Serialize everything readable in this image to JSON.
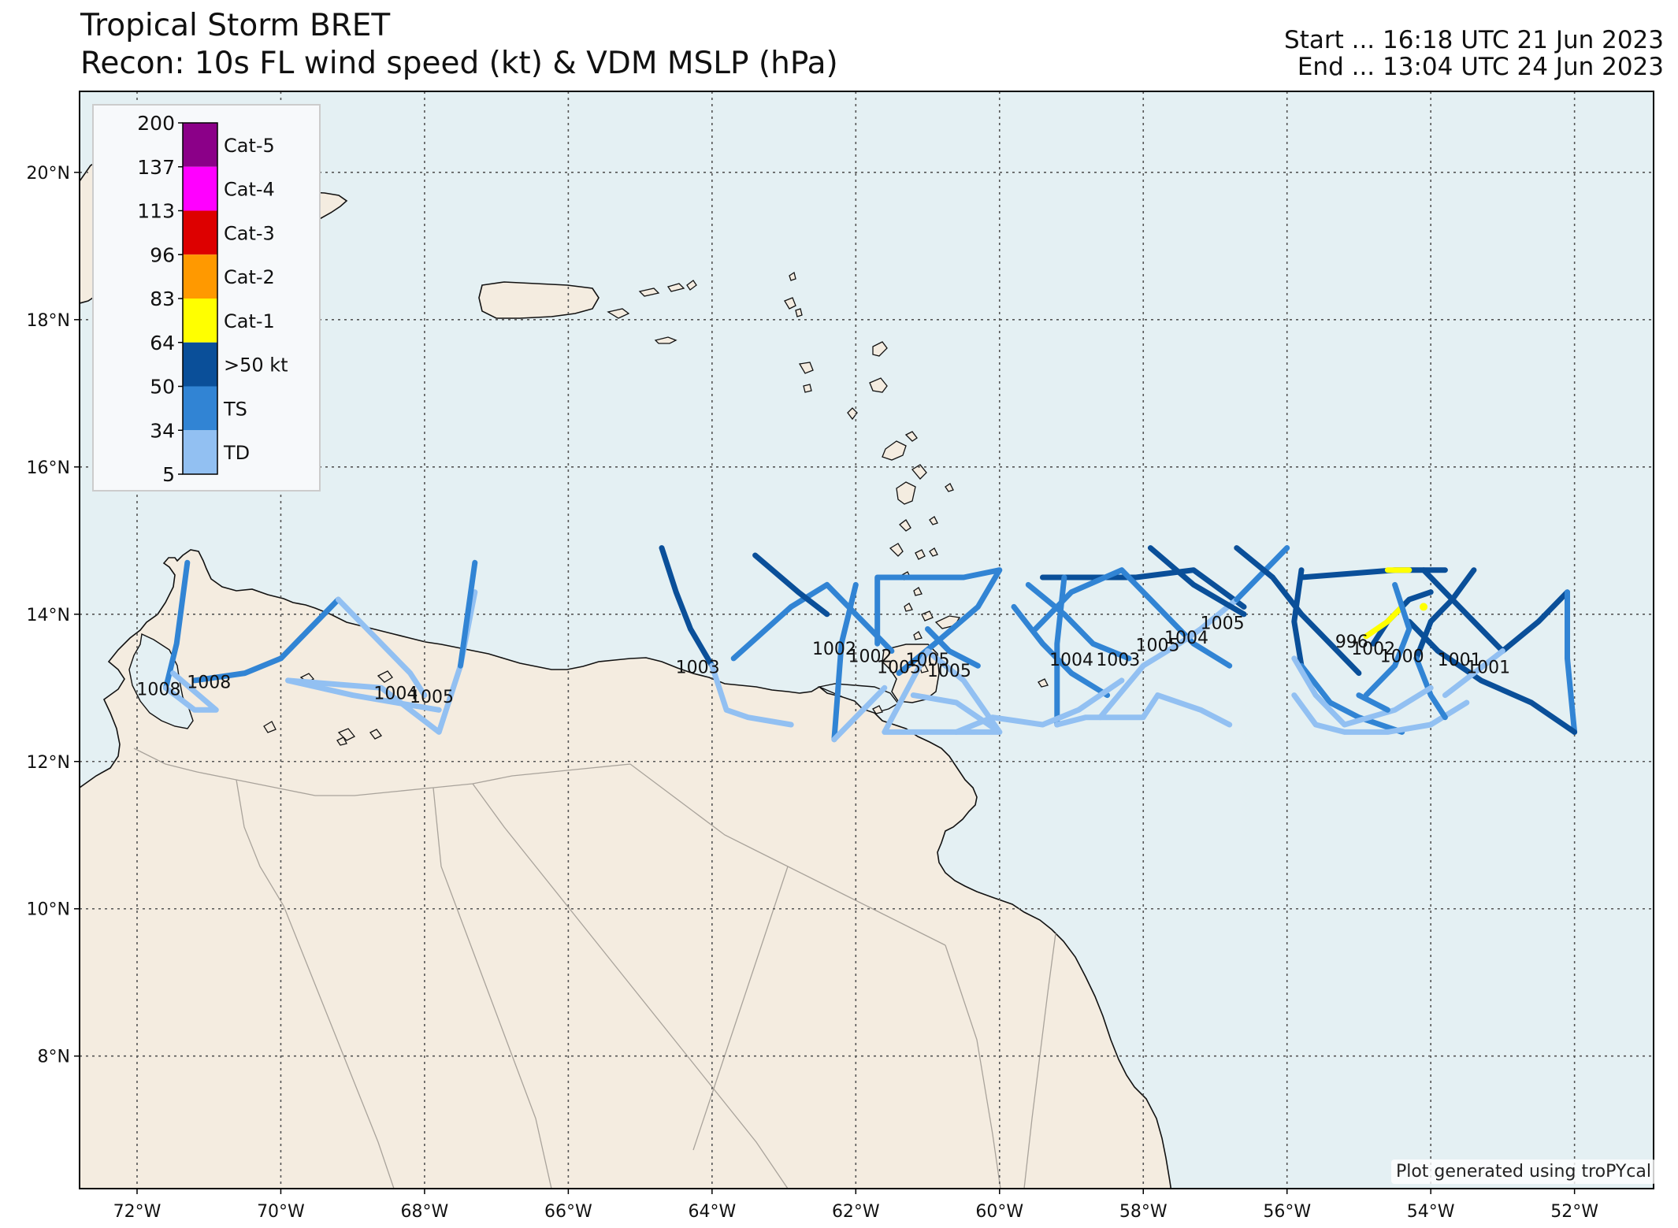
{
  "header": {
    "title": "Tropical Storm BRET",
    "subtitle": "Recon: 10s FL wind speed (kt) & VDM MSLP (hPa)",
    "start": "Start ... 16:18 UTC 21 Jun 2023",
    "end": "End ... 13:04 UTC 24 Jun 2023"
  },
  "credit": "Plot generated using troPYcal",
  "colors": {
    "ocean": "#e4f0f3",
    "land": "#f4ece0",
    "coast": "#111111",
    "border": "#a9a39b",
    "gridline": "#555555"
  },
  "chart_data": {
    "type": "map",
    "lon_range": [
      -72.8,
      -50.9
    ],
    "lat_range": [
      6.2,
      21.1
    ],
    "grid": true,
    "lon_ticks": [
      {
        "value": -72,
        "label": "72°W"
      },
      {
        "value": -70,
        "label": "70°W"
      },
      {
        "value": -68,
        "label": "68°W"
      },
      {
        "value": -66,
        "label": "66°W"
      },
      {
        "value": -64,
        "label": "64°W"
      },
      {
        "value": -62,
        "label": "62°W"
      },
      {
        "value": -60,
        "label": "60°W"
      },
      {
        "value": -58,
        "label": "58°W"
      },
      {
        "value": -56,
        "label": "56°W"
      },
      {
        "value": -54,
        "label": "54°W"
      },
      {
        "value": -52,
        "label": "52°W"
      }
    ],
    "lat_ticks": [
      {
        "value": 20,
        "label": "20°N"
      },
      {
        "value": 18,
        "label": "18°N"
      },
      {
        "value": 16,
        "label": "16°N"
      },
      {
        "value": 14,
        "label": "14°N"
      },
      {
        "value": 12,
        "label": "12°N"
      },
      {
        "value": 10,
        "label": "10°N"
      },
      {
        "value": 8,
        "label": "8°N"
      }
    ],
    "legend": {
      "placement": "top-left",
      "bins": [
        {
          "low": 137,
          "high": 200,
          "label": "Cat-5",
          "color": "#8b0088"
        },
        {
          "low": 113,
          "high": 137,
          "label": "Cat-4",
          "color": "#ff00ff"
        },
        {
          "low": 96,
          "high": 113,
          "label": "Cat-3",
          "color": "#dd0000"
        },
        {
          "low": 83,
          "high": 96,
          "label": "Cat-2",
          "color": "#ff9900"
        },
        {
          "low": 64,
          "high": 83,
          "label": "Cat-1",
          "color": "#ffff00"
        },
        {
          "low": 50,
          "high": 64,
          "label": ">50 kt",
          "color": "#0a4f99"
        },
        {
          "low": 34,
          "high": 50,
          "label": "TS",
          "color": "#3184d4"
        },
        {
          "low": 5,
          "high": 34,
          "label": "TD",
          "color": "#92c0f2"
        }
      ],
      "tick_labels": [
        "200",
        "137",
        "113",
        "96",
        "83",
        "64",
        "50",
        "34",
        "5"
      ]
    },
    "flight_tracks": [
      {
        "cat": "TS",
        "points": [
          [
            -71.3,
            14.7
          ],
          [
            -71.45,
            13.6
          ],
          [
            -71.6,
            13.0
          ]
        ]
      },
      {
        "cat": "TD",
        "points": [
          [
            -71.6,
            13.0
          ],
          [
            -71.2,
            12.7
          ],
          [
            -70.9,
            12.7
          ],
          [
            -71.5,
            13.2
          ]
        ]
      },
      {
        "cat": "TS",
        "points": [
          [
            -71.2,
            13.1
          ],
          [
            -70.5,
            13.2
          ],
          [
            -70.0,
            13.4
          ],
          [
            -69.6,
            13.8
          ],
          [
            -69.2,
            14.2
          ]
        ]
      },
      {
        "cat": "TD",
        "points": [
          [
            -69.2,
            14.2
          ],
          [
            -68.6,
            13.6
          ],
          [
            -68.2,
            13.2
          ],
          [
            -68.0,
            12.9
          ]
        ]
      },
      {
        "cat": "TD",
        "points": [
          [
            -69.9,
            13.1
          ],
          [
            -68.6,
            13.0
          ],
          [
            -67.8,
            12.4
          ],
          [
            -67.5,
            13.3
          ],
          [
            -67.3,
            14.3
          ]
        ]
      },
      {
        "cat": "TS",
        "points": [
          [
            -67.5,
            13.3
          ],
          [
            -67.3,
            14.7
          ]
        ]
      },
      {
        "cat": "TD",
        "points": [
          [
            -69.9,
            13.1
          ],
          [
            -69.0,
            12.9
          ],
          [
            -67.8,
            12.7
          ]
        ]
      },
      {
        "cat": ">50 kt",
        "points": [
          [
            -64.7,
            14.9
          ],
          [
            -64.5,
            14.3
          ],
          [
            -64.3,
            13.8
          ],
          [
            -64.0,
            13.3
          ]
        ]
      },
      {
        "cat": "TD",
        "points": [
          [
            -64.0,
            13.3
          ],
          [
            -63.8,
            12.7
          ],
          [
            -63.5,
            12.6
          ],
          [
            -62.9,
            12.5
          ]
        ]
      },
      {
        "cat": "TS",
        "points": [
          [
            -63.7,
            13.4
          ],
          [
            -62.9,
            14.1
          ],
          [
            -62.4,
            14.4
          ],
          [
            -62.0,
            14.0
          ],
          [
            -61.5,
            13.5
          ]
        ]
      },
      {
        "cat": ">50 kt",
        "points": [
          [
            -63.4,
            14.8
          ],
          [
            -62.8,
            14.3
          ],
          [
            -62.4,
            14.0
          ]
        ]
      },
      {
        "cat": "TS",
        "points": [
          [
            -62.0,
            14.4
          ],
          [
            -62.2,
            13.6
          ],
          [
            -62.3,
            12.3
          ]
        ]
      },
      {
        "cat": "TD",
        "points": [
          [
            -62.3,
            12.3
          ],
          [
            -61.9,
            12.7
          ],
          [
            -61.6,
            13.0
          ]
        ]
      },
      {
        "cat": "TS",
        "points": [
          [
            -61.7,
            13.6
          ],
          [
            -61.7,
            14.5
          ],
          [
            -60.5,
            14.5
          ],
          [
            -60.0,
            14.6
          ],
          [
            -60.3,
            14.1
          ],
          [
            -60.9,
            13.6
          ],
          [
            -61.4,
            13.2
          ]
        ]
      },
      {
        "cat": "TD",
        "points": [
          [
            -61.6,
            12.4
          ],
          [
            -60.5,
            12.4
          ],
          [
            -60.0,
            12.4
          ],
          [
            -60.5,
            13.1
          ],
          [
            -61.0,
            13.5
          ],
          [
            -61.6,
            12.4
          ]
        ]
      },
      {
        "cat": "TD",
        "points": [
          [
            -61.2,
            12.9
          ],
          [
            -60.6,
            12.8
          ],
          [
            -60.0,
            12.4
          ]
        ]
      },
      {
        "cat": "TS",
        "points": [
          [
            -61.0,
            13.8
          ],
          [
            -60.7,
            13.5
          ],
          [
            -60.3,
            13.3
          ]
        ]
      },
      {
        "cat": ">50 kt",
        "points": [
          [
            -59.4,
            14.5
          ],
          [
            -58.1,
            14.5
          ],
          [
            -57.3,
            14.6
          ],
          [
            -56.6,
            14.1
          ]
        ]
      },
      {
        "cat": "TS",
        "points": [
          [
            -59.5,
            13.8
          ],
          [
            -59.0,
            14.3
          ],
          [
            -58.3,
            14.6
          ],
          [
            -57.8,
            14.1
          ],
          [
            -57.3,
            13.6
          ],
          [
            -56.8,
            13.3
          ]
        ]
      },
      {
        "cat": "TS",
        "points": [
          [
            -58.2,
            13.4
          ],
          [
            -58.7,
            13.6
          ],
          [
            -59.1,
            14.0
          ],
          [
            -59.6,
            14.4
          ]
        ]
      },
      {
        "cat": "TS",
        "points": [
          [
            -59.1,
            14.5
          ],
          [
            -59.2,
            13.6
          ],
          [
            -59.2,
            12.5
          ]
        ]
      },
      {
        "cat": "TD",
        "points": [
          [
            -59.2,
            12.5
          ],
          [
            -58.8,
            12.6
          ],
          [
            -58.0,
            12.6
          ],
          [
            -57.8,
            12.9
          ],
          [
            -57.2,
            12.7
          ],
          [
            -56.8,
            12.5
          ]
        ]
      },
      {
        "cat": "TD",
        "points": [
          [
            -58.6,
            12.6
          ],
          [
            -58.0,
            13.3
          ],
          [
            -57.5,
            13.6
          ],
          [
            -57.2,
            13.8
          ],
          [
            -56.7,
            14.2
          ],
          [
            -56.0,
            14.9
          ]
        ]
      },
      {
        "cat": ">50 kt",
        "points": [
          [
            -57.9,
            14.9
          ],
          [
            -57.3,
            14.4
          ],
          [
            -56.6,
            14.0
          ]
        ]
      },
      {
        "cat": "TS",
        "points": [
          [
            -56.7,
            14.2
          ],
          [
            -56.0,
            14.9
          ]
        ]
      },
      {
        "cat": "TS",
        "points": [
          [
            -59.8,
            14.1
          ],
          [
            -59.4,
            13.6
          ],
          [
            -59.0,
            13.2
          ],
          [
            -58.5,
            12.9
          ]
        ]
      },
      {
        "cat": "TD",
        "points": [
          [
            -60.6,
            12.4
          ],
          [
            -60.1,
            12.6
          ],
          [
            -59.4,
            12.5
          ],
          [
            -58.9,
            12.7
          ],
          [
            -58.3,
            13.1
          ]
        ]
      },
      {
        "cat": ">50 kt",
        "points": [
          [
            -55.8,
            14.5
          ],
          [
            -54.5,
            14.6
          ],
          [
            -53.8,
            14.6
          ]
        ]
      },
      {
        "cat": "Cat-1",
        "points": [
          [
            -54.6,
            14.6
          ],
          [
            -54.3,
            14.6
          ]
        ]
      },
      {
        "cat": ">50 kt",
        "points": [
          [
            -55.8,
            14.6
          ],
          [
            -55.9,
            13.9
          ],
          [
            -55.8,
            13.3
          ]
        ]
      },
      {
        "cat": ">50 kt",
        "points": [
          [
            -56.7,
            14.9
          ],
          [
            -56.2,
            14.5
          ],
          [
            -55.8,
            14.0
          ],
          [
            -55.4,
            13.6
          ],
          [
            -55.0,
            13.2
          ]
        ]
      },
      {
        "cat": "TS",
        "points": [
          [
            -55.8,
            13.3
          ],
          [
            -55.4,
            12.8
          ],
          [
            -55.0,
            12.6
          ],
          [
            -54.4,
            12.4
          ]
        ]
      },
      {
        "cat": "TD",
        "points": [
          [
            -55.9,
            12.9
          ],
          [
            -55.6,
            12.5
          ],
          [
            -55.2,
            12.4
          ],
          [
            -54.6,
            12.4
          ],
          [
            -54.0,
            12.5
          ],
          [
            -53.5,
            12.8
          ]
        ]
      },
      {
        "cat": ">50 kt",
        "points": [
          [
            -54.8,
            13.6
          ],
          [
            -54.6,
            13.9
          ],
          [
            -54.3,
            14.2
          ],
          [
            -54.0,
            14.3
          ]
        ]
      },
      {
        "cat": "Cat-1",
        "points": [
          [
            -54.9,
            13.7
          ],
          [
            -54.6,
            13.9
          ],
          [
            -54.4,
            14.1
          ]
        ]
      },
      {
        "cat": ">50 kt",
        "points": [
          [
            -54.1,
            14.6
          ],
          [
            -53.7,
            14.2
          ],
          [
            -53.3,
            13.8
          ],
          [
            -53.0,
            13.5
          ],
          [
            -52.5,
            13.9
          ],
          [
            -52.1,
            14.3
          ]
        ]
      },
      {
        "cat": "TS",
        "points": [
          [
            -52.1,
            14.3
          ],
          [
            -52.1,
            13.4
          ],
          [
            -52.0,
            12.4
          ]
        ]
      },
      {
        "cat": ">50 kt",
        "points": [
          [
            -52.0,
            12.4
          ],
          [
            -52.6,
            12.8
          ],
          [
            -53.3,
            13.1
          ],
          [
            -53.9,
            13.5
          ],
          [
            -54.3,
            13.9
          ]
        ]
      },
      {
        "cat": ">50 kt",
        "points": [
          [
            -53.4,
            14.6
          ],
          [
            -53.7,
            14.2
          ],
          [
            -54.0,
            13.9
          ],
          [
            -54.2,
            13.4
          ]
        ]
      },
      {
        "cat": "TS",
        "points": [
          [
            -54.2,
            13.4
          ],
          [
            -54.0,
            12.9
          ],
          [
            -53.8,
            12.6
          ]
        ]
      },
      {
        "cat": "TS",
        "points": [
          [
            -54.5,
            14.4
          ],
          [
            -54.3,
            13.8
          ],
          [
            -54.5,
            13.3
          ],
          [
            -54.9,
            12.9
          ]
        ]
      },
      {
        "cat": "TD",
        "points": [
          [
            -54.0,
            13.0
          ],
          [
            -54.5,
            12.7
          ],
          [
            -55.2,
            12.5
          ],
          [
            -55.6,
            12.9
          ],
          [
            -55.9,
            13.4
          ]
        ]
      },
      {
        "cat": "TS",
        "points": [
          [
            -55.0,
            12.9
          ],
          [
            -54.6,
            12.7
          ]
        ]
      },
      {
        "cat": "TD",
        "points": [
          [
            -53.8,
            12.9
          ],
          [
            -53.4,
            13.2
          ],
          [
            -53.0,
            13.5
          ]
        ]
      }
    ],
    "vdm_labels": [
      {
        "lon": -71.7,
        "lat": 12.9,
        "text": "1008"
      },
      {
        "lon": -71.0,
        "lat": 13.0,
        "text": "1008"
      },
      {
        "lon": -68.4,
        "lat": 12.85,
        "text": "1004"
      },
      {
        "lon": -67.9,
        "lat": 12.8,
        "text": "1005"
      },
      {
        "lon": -64.2,
        "lat": 13.2,
        "text": "1003"
      },
      {
        "lon": -62.3,
        "lat": 13.45,
        "text": "1002"
      },
      {
        "lon": -61.8,
        "lat": 13.35,
        "text": "1002"
      },
      {
        "lon": -61.4,
        "lat": 13.2,
        "text": "1005"
      },
      {
        "lon": -61.0,
        "lat": 13.3,
        "text": "1005"
      },
      {
        "lon": -60.7,
        "lat": 13.15,
        "text": "1005"
      },
      {
        "lon": -59.0,
        "lat": 13.3,
        "text": "1004"
      },
      {
        "lon": -58.35,
        "lat": 13.3,
        "text": "1003"
      },
      {
        "lon": -57.8,
        "lat": 13.5,
        "text": "1005"
      },
      {
        "lon": -57.4,
        "lat": 13.6,
        "text": "1004"
      },
      {
        "lon": -56.9,
        "lat": 13.8,
        "text": "1005"
      },
      {
        "lon": -55.1,
        "lat": 13.55,
        "text": "996"
      },
      {
        "lon": -54.8,
        "lat": 13.45,
        "text": "1002"
      },
      {
        "lon": -54.4,
        "lat": 13.35,
        "text": "1000"
      },
      {
        "lon": -53.6,
        "lat": 13.3,
        "text": "1001"
      },
      {
        "lon": -53.2,
        "lat": 13.2,
        "text": "1001"
      }
    ],
    "vdm_points": [
      {
        "lon": -54.1,
        "lat": 14.1,
        "cat": "Cat-1"
      }
    ]
  }
}
